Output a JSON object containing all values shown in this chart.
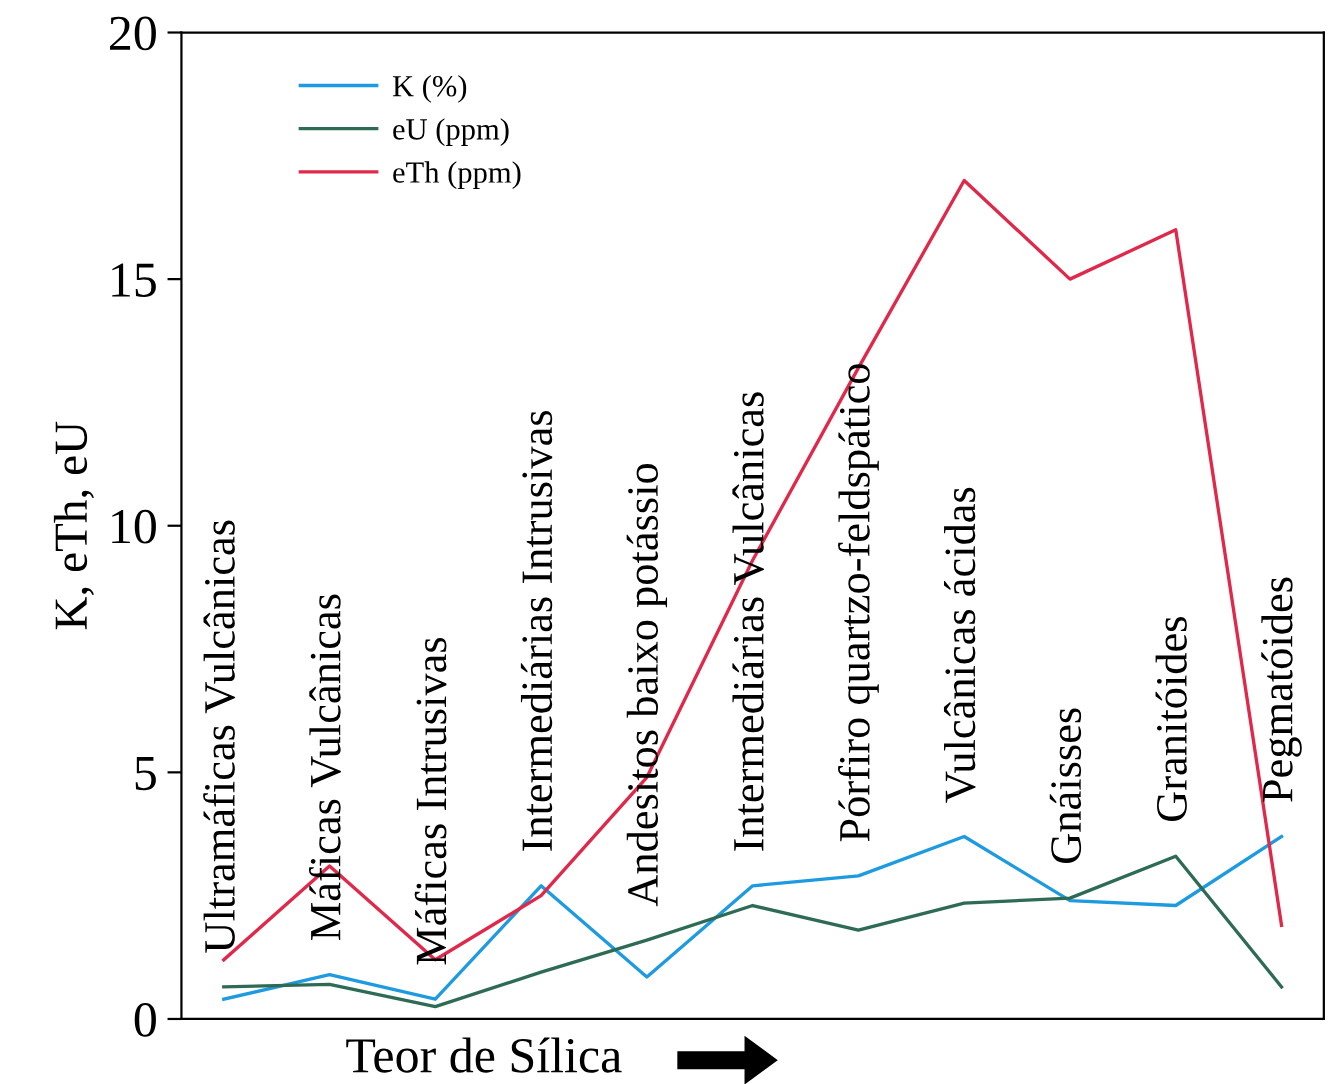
{
  "chart_data": {
    "type": "line",
    "xlabel": "Teor de Sílica",
    "ylabel": "K, eTh, eU",
    "categories": [
      "Ultramáficas Vulcânicas",
      "Máficas Vulcânicas",
      "Máficas Intrusivas",
      "Intermediárias Intrusivas",
      "Andesitos baixo potássio",
      "Intermediárias Vulcânicas",
      "Pórfiro quartzo-feldspático",
      "Vulcânicas ácidas",
      "Gnáisses",
      "Granitóides",
      "Pegmatóides"
    ],
    "series": [
      {
        "name": "K (%)",
        "color": "#1e9be0",
        "values": [
          0.4,
          0.9,
          0.4,
          2.7,
          0.85,
          2.7,
          2.9,
          3.7,
          2.4,
          2.3,
          3.7
        ]
      },
      {
        "name": "eU (ppm)",
        "color": "#2e6b55",
        "values": [
          0.65,
          0.7,
          0.25,
          0.95,
          1.6,
          2.3,
          1.8,
          2.35,
          2.45,
          3.3,
          0.65
        ]
      },
      {
        "name": "eTh (ppm)",
        "color": "#e0284a",
        "values": [
          1.2,
          3.1,
          1.2,
          2.5,
          4.9,
          9.3,
          13.2,
          17.0,
          15.0,
          16.0,
          1.9
        ]
      }
    ],
    "ylim": [
      0,
      20
    ],
    "yticks": [
      0,
      5,
      10,
      15,
      20
    ],
    "grid": false,
    "legend": "top left",
    "marker": "none",
    "line_style": "solid"
  }
}
